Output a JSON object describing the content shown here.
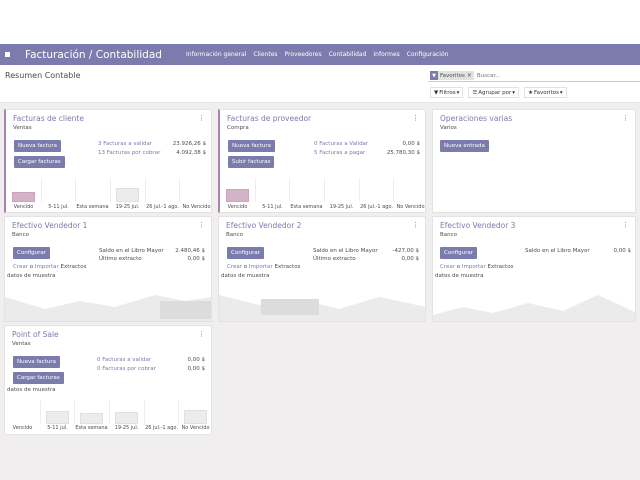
{
  "nav": {
    "brand": "Facturación / Contabilidad",
    "menu": [
      "Información general",
      "Clientes",
      "Proveedores",
      "Contabilidad",
      "Informes",
      "Configuración"
    ]
  },
  "control_panel": {
    "breadcrumb": "Resumen Contable",
    "facet": "Favoritos",
    "search_placeholder": "Buscar...",
    "filters_label": "Filtros",
    "groupby_label": "Agrupar por",
    "favorites_label": "Favoritos"
  },
  "ticks": [
    "Vencido",
    "5-11 jul.",
    "Esta semana",
    "19-25 jul.",
    "26 jul.-1 ago.",
    "No Vencido"
  ],
  "sample_label": "datos de muestra",
  "cards": {
    "customer": {
      "title": "Facturas de cliente",
      "subtitle": "Ventas",
      "btn1": "Nueva factura",
      "btn2": "Cargar facturas",
      "r1_label": "3 Facturas a validar",
      "r1_value": "23.926,26 $",
      "r2_label": "13 Facturas por cobrar",
      "r2_value": "4.092,38 $",
      "bars": [
        0.42,
        0,
        0,
        0.6,
        0,
        0
      ]
    },
    "vendor": {
      "title": "Facturas de proveedor",
      "subtitle": "Compra",
      "btn1": "Nueva factura",
      "btn2": "Subir facturas",
      "r1_label": "0 Facturas a Validar",
      "r1_value": "0,00 $",
      "r2_label": "5 Facturas a pagar",
      "r2_value": "25.780,30 $",
      "bars": [
        0.55,
        0,
        0,
        0,
        0,
        0
      ]
    },
    "misc": {
      "title": "Operaciones varias",
      "subtitle": "Varios",
      "btn1": "Nueva entrada"
    },
    "cash1": {
      "title": "Efectivo Vendedor 1",
      "subtitle": "Banco",
      "btn1": "Configurar",
      "r1_label": "Saldo en el Libro Mayor",
      "r1_value": "2.480,46 $",
      "r2_label": "Último extracto",
      "r2_value": "0,00 $",
      "create": "Crear",
      "or": "o",
      "import": "Importar",
      "extracts": "Extractos"
    },
    "cash2": {
      "title": "Efectivo Vendedor 2",
      "subtitle": "Banco",
      "btn1": "Configurar",
      "r1_label": "Saldo en el Libro Mayor",
      "r1_value": "-427,00 $",
      "r2_label": "Último extracto",
      "r2_value": "0,00 $",
      "create": "Crear",
      "or": "o",
      "import": "Importar",
      "extracts": "Extractos"
    },
    "cash3": {
      "title": "Efectivo Vendedor 3",
      "subtitle": "Banco",
      "btn1": "Configurar",
      "r1_label": "Saldo en el Libro Mayor",
      "r1_value": "0,00 $",
      "create": "Crear",
      "or": "o",
      "import": "Importar",
      "extracts": "Extractos"
    },
    "pos": {
      "title": "Point of Sale",
      "subtitle": "Ventas",
      "btn1": "Nueva factura",
      "btn2": "Cargar facturas",
      "r1_label": "0 Facturas a validar",
      "r1_value": "0,00 $",
      "r2_label": "0 Facturas por cobrar",
      "r2_value": "0,00 $",
      "bars": [
        0,
        0.55,
        0.45,
        0.5,
        0,
        0.6
      ]
    }
  }
}
